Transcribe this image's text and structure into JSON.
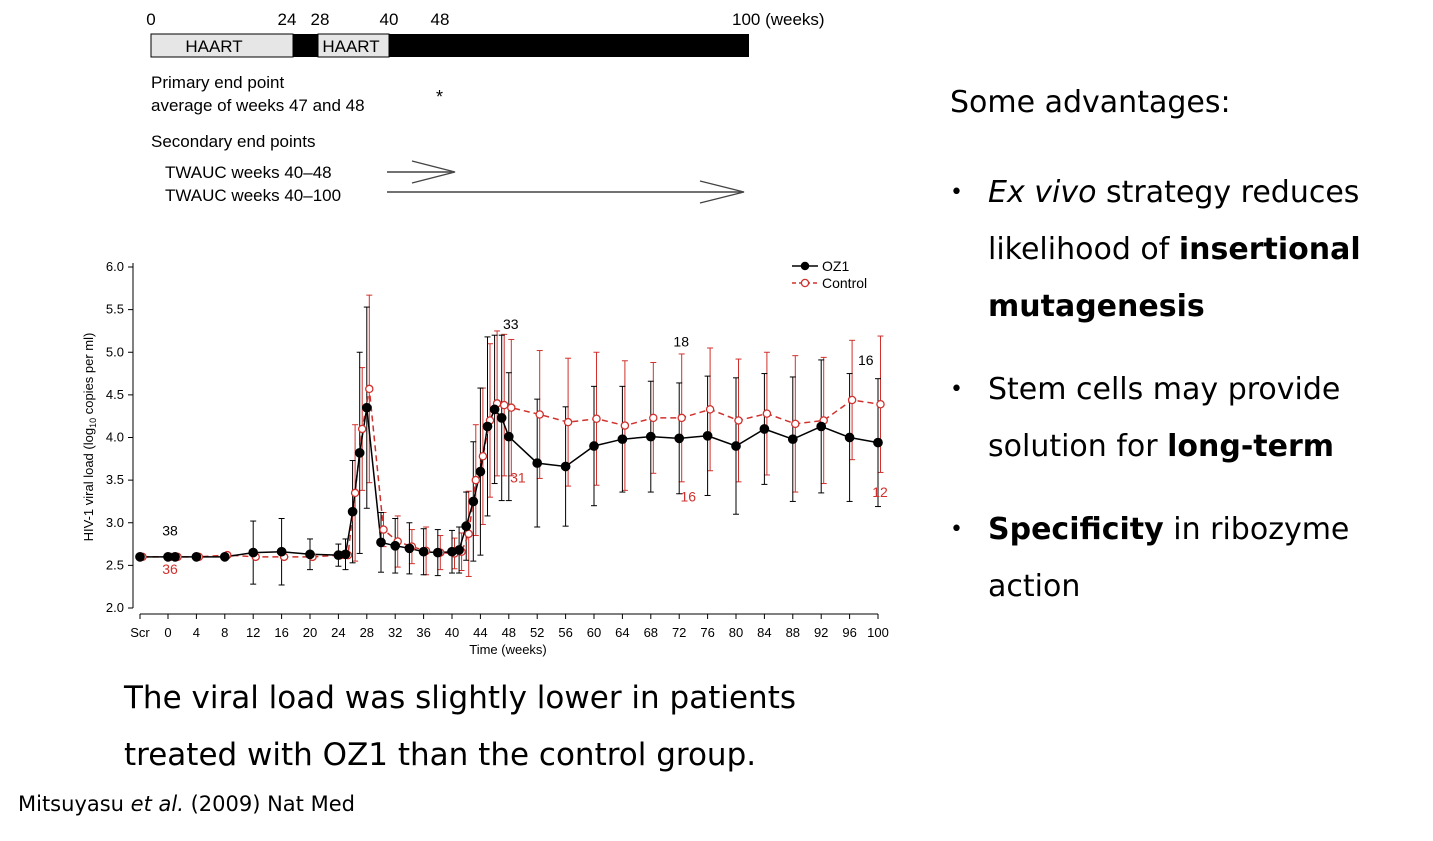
{
  "timeline": {
    "ticks": [
      "0",
      "24",
      "28",
      "40",
      "48",
      "100 (weeks)"
    ],
    "bar_labels": [
      "HAART",
      "HAART"
    ],
    "primary_endpoint": [
      "Primary end point",
      "average of weeks 47 and 48"
    ],
    "primary_marker": "*",
    "secondary_title": "Secondary end points",
    "secondary_items": [
      "TWAUC weeks 40–48",
      "TWAUC weeks 40–100"
    ]
  },
  "chart_data": {
    "type": "line",
    "title": "",
    "xlabel": "Time (weeks)",
    "ylabel_parts": [
      "HIV-1 viral load (log",
      "10",
      " copies per ml)"
    ],
    "ylim": [
      2.0,
      6.0
    ],
    "yticks": [
      "2.0",
      "2.5",
      "3.0",
      "3.5",
      "4.0",
      "4.5",
      "5.0",
      "5.5",
      "6.0"
    ],
    "xticks": [
      "Scr",
      "0",
      "4",
      "8",
      "12",
      "16",
      "20",
      "24",
      "28",
      "32",
      "36",
      "40",
      "44",
      "48",
      "52",
      "56",
      "60",
      "64",
      "68",
      "72",
      "76",
      "80",
      "84",
      "88",
      "92",
      "96",
      "100"
    ],
    "legend": {
      "position": "top-right"
    },
    "series": [
      {
        "name": "OZ1",
        "color": "#000000",
        "style": "solid-filled-circle",
        "x": [
          "Scr",
          0,
          1,
          4,
          8,
          12,
          16,
          20,
          24,
          25,
          26,
          27,
          28,
          30,
          32,
          34,
          36,
          38,
          40,
          41,
          42,
          43,
          44,
          45,
          46,
          47,
          48,
          52,
          56,
          60,
          64,
          68,
          72,
          76,
          80,
          84,
          88,
          92,
          96,
          100
        ],
        "values": [
          2.6,
          2.6,
          2.6,
          2.6,
          2.6,
          2.65,
          2.66,
          2.63,
          2.62,
          2.63,
          3.13,
          3.82,
          4.35,
          2.77,
          2.73,
          2.7,
          2.66,
          2.65,
          2.66,
          2.68,
          2.96,
          3.25,
          3.6,
          4.13,
          4.33,
          4.23,
          4.01,
          3.7,
          3.66,
          3.9,
          3.98,
          4.01,
          3.99,
          4.02,
          3.9,
          4.1,
          3.98,
          4.13,
          4.0,
          3.94
        ],
        "error": [
          0,
          0,
          0,
          0,
          0,
          0.37,
          0.39,
          0.18,
          0.13,
          0.18,
          0.6,
          1.18,
          1.18,
          0.35,
          0.32,
          0.3,
          0.27,
          0.27,
          0.25,
          0.27,
          0.4,
          0.7,
          0.98,
          1.05,
          0.87,
          0.97,
          0.75,
          0.75,
          0.7,
          0.7,
          0.62,
          0.65,
          0.65,
          0.7,
          0.8,
          0.65,
          0.73,
          0.78,
          0.75,
          0.75
        ]
      },
      {
        "name": "Control",
        "color": "#d0312d",
        "style": "dashed-open-circle",
        "x": [
          "Scr",
          0,
          1,
          4,
          8,
          12,
          16,
          20,
          24,
          25,
          26,
          27,
          28,
          30,
          32,
          34,
          36,
          38,
          40,
          41,
          42,
          43,
          44,
          45,
          46,
          47,
          48,
          52,
          56,
          60,
          64,
          68,
          72,
          76,
          80,
          84,
          88,
          92,
          96,
          100
        ],
        "values": [
          2.6,
          2.6,
          2.6,
          2.6,
          2.62,
          2.6,
          2.6,
          2.6,
          2.62,
          2.62,
          3.35,
          4.1,
          4.57,
          2.92,
          2.78,
          2.72,
          2.67,
          2.65,
          2.64,
          2.66,
          2.87,
          3.5,
          3.78,
          4.2,
          4.4,
          4.38,
          4.35,
          4.27,
          4.18,
          4.22,
          4.14,
          4.23,
          4.23,
          4.33,
          4.2,
          4.28,
          4.16,
          4.2,
          4.44,
          4.39
        ],
        "error": [
          0,
          0,
          0,
          0,
          0,
          0,
          0,
          0,
          0,
          0,
          0.8,
          0.72,
          1.1,
          0.2,
          0.3,
          0.2,
          0.28,
          0.2,
          0.18,
          0.22,
          0.5,
          0.65,
          0.8,
          0.9,
          0.85,
          0.83,
          0.8,
          0.75,
          0.75,
          0.78,
          0.76,
          0.65,
          0.75,
          0.72,
          0.72,
          0.72,
          0.8,
          0.74,
          0.7,
          0.8
        ]
      }
    ],
    "annotations": [
      {
        "text": "38",
        "x": 0,
        "y": 2.85,
        "color": "#000000"
      },
      {
        "text": "36",
        "x": 0,
        "y": 2.4,
        "color": "#d0312d"
      },
      {
        "text": "33",
        "x": 48,
        "y": 5.27,
        "color": "#000000"
      },
      {
        "text": "31",
        "x": 49,
        "y": 3.47,
        "color": "#d0312d"
      },
      {
        "text": "18",
        "x": 72,
        "y": 5.07,
        "color": "#000000"
      },
      {
        "text": "16",
        "x": 73,
        "y": 3.25,
        "color": "#d0312d"
      },
      {
        "text": "16",
        "x": 98,
        "y": 4.85,
        "color": "#000000"
      },
      {
        "text": "12",
        "x": 100,
        "y": 3.3,
        "color": "#d0312d"
      }
    ]
  },
  "caption": "The viral load was slightly lower in patients treated with OZ1 than the control group.",
  "citation": {
    "authors": "Mitsuyasu",
    "etal": "et al.",
    "rest": "(2009) Nat Med"
  },
  "advantages": {
    "title": "Some advantages:",
    "bullet": "•",
    "items": [
      {
        "parts": [
          {
            "t": "Ex vivo",
            "s": "i"
          },
          {
            "t": " strategy reduces likelihood of ",
            "s": "n"
          },
          {
            "t": "insertional mutagenesis",
            "s": "b"
          }
        ]
      },
      {
        "parts": [
          {
            "t": "Stem cells may provide solution for ",
            "s": "n"
          },
          {
            "t": "long-term",
            "s": "b"
          }
        ]
      },
      {
        "parts": [
          {
            "t": "Specificity",
            "s": "b"
          },
          {
            "t": " in ribozyme action",
            "s": "n"
          }
        ]
      }
    ]
  }
}
